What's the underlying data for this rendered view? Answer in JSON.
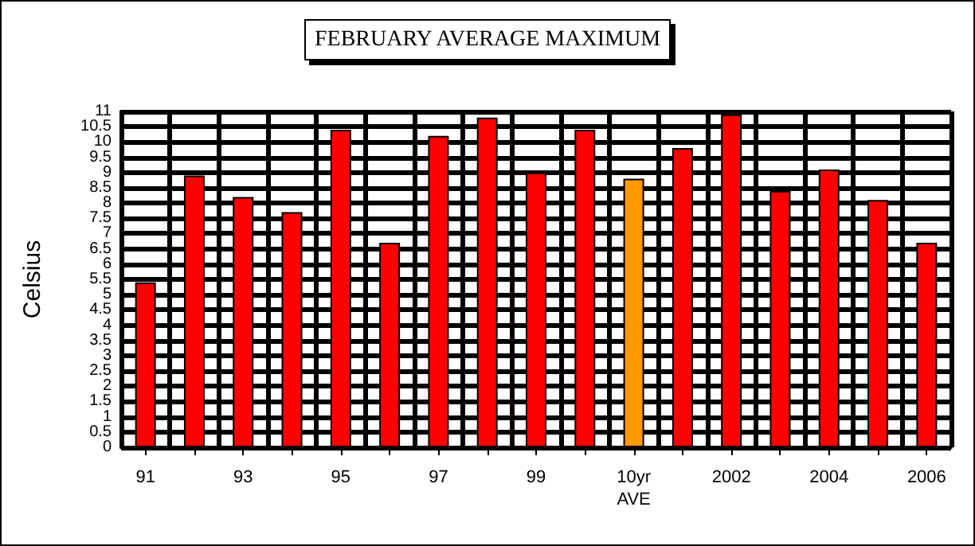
{
  "chart_data": {
    "type": "bar",
    "title": "FEBRUARY AVERAGE MAXIMUM",
    "ylabel": "Celsius",
    "categories": [
      "91",
      null,
      "93",
      null,
      "95",
      null,
      "97",
      null,
      "99",
      null,
      "10yr\nAVE",
      null,
      "2002",
      null,
      "2004",
      null,
      "2006"
    ],
    "values": [
      5.4,
      8.9,
      8.2,
      7.7,
      10.4,
      6.7,
      10.2,
      10.8,
      9.0,
      10.4,
      8.8,
      9.8,
      10.9,
      8.4,
      9.1,
      8.1,
      6.7
    ],
    "colors": [
      "#ff0000",
      "#ff0000",
      "#ff0000",
      "#ff0000",
      "#ff0000",
      "#ff0000",
      "#ff0000",
      "#ff0000",
      "#ff0000",
      "#ff0000",
      "#ff9900",
      "#ff0000",
      "#ff0000",
      "#ff0000",
      "#ff0000",
      "#ff0000",
      "#ff0000"
    ],
    "ylim": [
      0,
      11
    ],
    "yticks": [
      0,
      0.5,
      1,
      1.5,
      2,
      2.5,
      3,
      3.5,
      4,
      4.5,
      5,
      5.5,
      6,
      6.5,
      7,
      7.5,
      8,
      8.5,
      9,
      9.5,
      10,
      10.5,
      11
    ],
    "grid": true
  }
}
